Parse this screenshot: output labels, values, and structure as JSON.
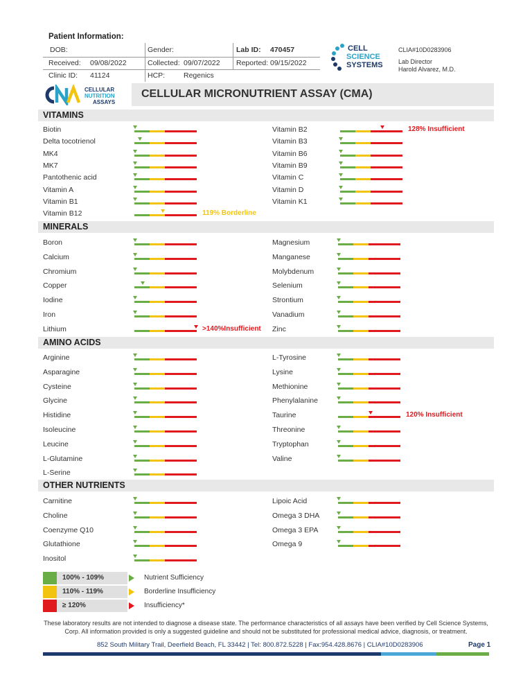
{
  "header": {
    "patient_info_title": "Patient Information:",
    "dob_label": "DOB:",
    "gender_label": "Gender:",
    "lab_id_label": "Lab ID:",
    "lab_id_value": "470457",
    "received_label": "Received:",
    "received_value": "09/08/2022",
    "collected_label": "Collected:",
    "collected_value": "09/07/2022",
    "reported_label": "Reported:",
    "reported_value": "09/15/2022",
    "clinic_id_label": "Clinic ID:",
    "clinic_id_value": "41124",
    "hcp_label": "HCP:",
    "hcp_value": "Regenics",
    "clia": "CLIA#10D0283906",
    "lab_director_title": "Lab Director",
    "lab_director_name": "Harold Alvarez, M.D.",
    "logo_css_line1": "CELL",
    "logo_css_line2": "SCIENCE",
    "logo_css_line3": "SYSTEMS",
    "logo_cna_line1": "CELLULAR",
    "logo_cna_line2": "NUTRITION",
    "logo_cna_line3": "ASSAYS",
    "report_title": "CELLULAR MICRONUTRIENT ASSAY (CMA)"
  },
  "sections": {
    "vitamins": "VITAMINS",
    "minerals": "MINERALS",
    "amino_acids": "AMINO ACIDS",
    "other": "OTHER NUTRIENTS"
  },
  "vitamins_left": [
    {
      "name": "Biotin",
      "pos": 0.0
    },
    {
      "name": "Delta tocotrienol",
      "pos": 0.08
    },
    {
      "name": "MK4",
      "pos": 0.0
    },
    {
      "name": "MK7",
      "pos": 0.0
    },
    {
      "name": "Pantothenic acid",
      "pos": 0.0
    },
    {
      "name": "Vitamin A",
      "pos": 0.0
    },
    {
      "name": "Vitamin B1",
      "pos": 0.0
    },
    {
      "name": "Vitamin B12",
      "pos": 0.45,
      "status": "yellow",
      "flag": "119% Borderline"
    }
  ],
  "vitamins_right": [
    {
      "name": "Vitamin B2",
      "pos": 0.68,
      "status": "red",
      "flag": "128% Insufficient"
    },
    {
      "name": "Vitamin B3",
      "pos": 0.0
    },
    {
      "name": "Vitamin B6",
      "pos": 0.0
    },
    {
      "name": "Vitamin B9",
      "pos": 0.0
    },
    {
      "name": "Vitamin C",
      "pos": 0.0
    },
    {
      "name": "Vitamin D",
      "pos": 0.0
    },
    {
      "name": "Vitamin K1",
      "pos": 0.0
    }
  ],
  "minerals_left": [
    {
      "name": "Boron",
      "pos": 0.0
    },
    {
      "name": "Calcium",
      "pos": 0.0
    },
    {
      "name": "Chromium",
      "pos": 0.0
    },
    {
      "name": "Copper",
      "pos": 0.12
    },
    {
      "name": "Iodine",
      "pos": 0.0
    },
    {
      "name": "Iron",
      "pos": 0.0
    },
    {
      "name": "Lithium",
      "pos": 1.0,
      "status": "red",
      "flag": ">140%Insufficient"
    }
  ],
  "minerals_right": [
    {
      "name": "Magnesium",
      "pos": 0.0
    },
    {
      "name": "Manganese",
      "pos": 0.0
    },
    {
      "name": "Molybdenum",
      "pos": 0.0
    },
    {
      "name": "Selenium",
      "pos": 0.0
    },
    {
      "name": "Strontium",
      "pos": 0.0
    },
    {
      "name": "Vanadium",
      "pos": 0.0
    },
    {
      "name": "Zinc",
      "pos": 0.0
    }
  ],
  "amino_left": [
    {
      "name": "Arginine",
      "pos": 0.0
    },
    {
      "name": "Asparagine",
      "pos": 0.0
    },
    {
      "name": "Cysteine",
      "pos": 0.0
    },
    {
      "name": "Glycine",
      "pos": 0.0
    },
    {
      "name": "Histidine",
      "pos": 0.0
    },
    {
      "name": "Isoleucine",
      "pos": 0.0
    },
    {
      "name": "Leucine",
      "pos": 0.0
    },
    {
      "name": "L-Glutamine",
      "pos": 0.0
    },
    {
      "name": "L-Serine",
      "pos": 0.0
    }
  ],
  "amino_right": [
    {
      "name": "L-Tyrosine",
      "pos": 0.0
    },
    {
      "name": "Lysine",
      "pos": 0.0
    },
    {
      "name": "Methionine",
      "pos": 0.0
    },
    {
      "name": "Phenylalanine",
      "pos": 0.0
    },
    {
      "name": "Taurine",
      "pos": 0.52,
      "status": "red",
      "flag": "120% Insufficient"
    },
    {
      "name": "Threonine",
      "pos": 0.0
    },
    {
      "name": "Tryptophan",
      "pos": 0.0
    },
    {
      "name": "Valine",
      "pos": 0.0
    }
  ],
  "other_left": [
    {
      "name": "Carnitine",
      "pos": 0.0
    },
    {
      "name": "Choline",
      "pos": 0.0
    },
    {
      "name": "Coenzyme Q10",
      "pos": 0.0
    },
    {
      "name": "Glutathione",
      "pos": 0.0
    },
    {
      "name": "Inositol",
      "pos": 0.0
    }
  ],
  "other_right": [
    {
      "name": "Lipoic Acid",
      "pos": 0.0
    },
    {
      "name": "Omega 3 DHA",
      "pos": 0.0
    },
    {
      "name": "Omega 3 EPA",
      "pos": 0.0
    },
    {
      "name": "Omega 9",
      "pos": 0.0
    }
  ],
  "legend": [
    {
      "range": "100% - 109%",
      "color": "#6aac45",
      "desc": "Nutrient Sufficiency"
    },
    {
      "range": "110% - 119%",
      "color": "#f2c40f",
      "desc": "Borderline Insufficiency"
    },
    {
      "range": "≥ 120%",
      "color": "#e0191e",
      "desc": "Insufficiency*"
    }
  ],
  "colors": {
    "green": "#6aac45",
    "yellow": "#f2c40f",
    "red": "#e0191e",
    "navy": "#1e3a6b",
    "teal": "#2ba3c9"
  },
  "footer": {
    "disclaimer": "These laboratory results are not intended to diagnose a disease state.  The performance characteristics of all assays have been verified by Cell Science Systems, Corp. All information provided is only a suggested guideline and should not be substituted for professional medical advice, diagnosis, or treatment.",
    "address": "852 South Military Trail, Deerfield Beach, FL 33442  |  Tel: 800.872.5228  |  Fax:954.428.8676  |  CLIA#10D0283906",
    "page": "Page 1"
  }
}
